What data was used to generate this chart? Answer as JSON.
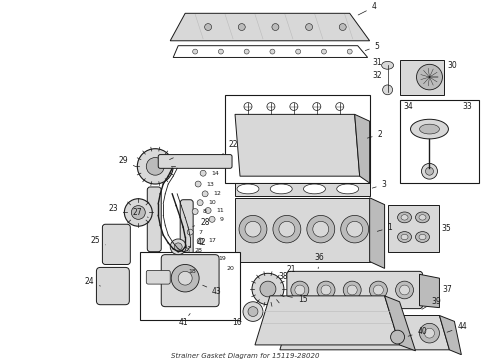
{
  "background_color": "#ffffff",
  "line_color": "#1a1a1a",
  "light_gray": "#e0e0e0",
  "mid_gray": "#b0b0b0",
  "dark_gray": "#555555",
  "caption": "Strainer Gasket Diagram for 15119-28020",
  "figsize": [
    4.9,
    3.6
  ],
  "dpi": 100
}
